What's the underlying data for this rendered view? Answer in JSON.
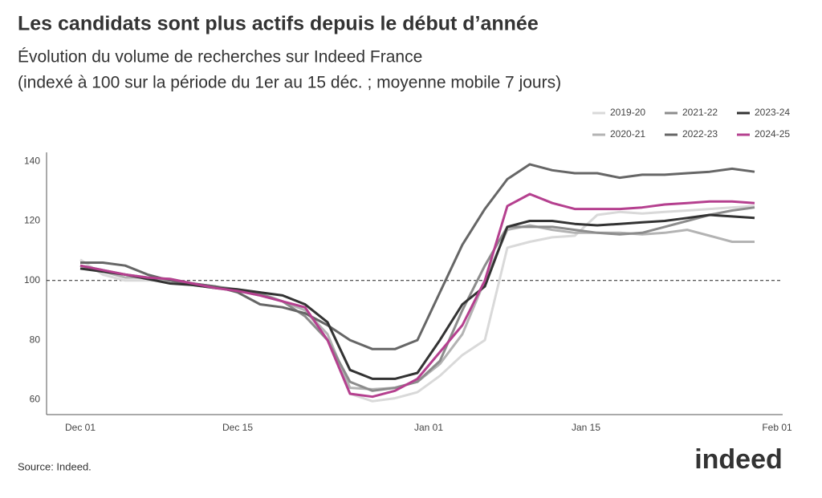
{
  "chart_data": {
    "type": "line",
    "title": "Les candidats sont plus actifs depuis le début d’année",
    "subtitle": [
      "Évolution du volume de recherches sur Indeed France",
      "(indexé à 100 sur la période du 1er au 15 déc. ; moyenne mobile 7 jours)"
    ],
    "source": "Source: Indeed.",
    "logo": "indeed",
    "x": [
      0,
      2,
      4,
      6,
      8,
      10,
      12,
      14,
      16,
      18,
      20,
      22,
      24,
      26,
      28,
      30,
      32,
      34,
      36,
      38,
      40,
      42,
      44,
      46,
      48,
      50,
      52,
      54,
      56,
      58,
      60
    ],
    "xlim": [
      -3,
      62.5
    ],
    "xticks": [
      {
        "value": 0,
        "label": "Dec 01"
      },
      {
        "value": 14,
        "label": "Dec 15"
      },
      {
        "value": 31,
        "label": "Jan 01"
      },
      {
        "value": 45,
        "label": "Jan 15"
      },
      {
        "value": 62,
        "label": "Feb 01"
      }
    ],
    "ylim": [
      55,
      143
    ],
    "yticks": [
      60,
      80,
      100,
      120,
      140
    ],
    "reference_line": 100,
    "legend": "top-right",
    "series": [
      {
        "name": "2019-20",
        "color": "#d9d9d9",
        "values": [
          107,
          102,
          100,
          100,
          100,
          98.5,
          97.5,
          97,
          96,
          93,
          90,
          80,
          62,
          59.5,
          60.5,
          62.5,
          68,
          75,
          80,
          111,
          113,
          114.5,
          115,
          122,
          123,
          122.5,
          123,
          123.5,
          124,
          124.5,
          125
        ]
      },
      {
        "name": "2020-21",
        "color": "#b3b3b3",
        "values": [
          105,
          103,
          101,
          101,
          100,
          98.5,
          97.5,
          96.5,
          95,
          93,
          90,
          82,
          64,
          63.5,
          64,
          66,
          72,
          82,
          100,
          117,
          118.5,
          117,
          116,
          116,
          116,
          115.5,
          116,
          117,
          115,
          113,
          113
        ]
      },
      {
        "name": "2021-22",
        "color": "#8c8c8c",
        "values": [
          105,
          103.5,
          102,
          101,
          100.5,
          99,
          98,
          97,
          95.5,
          93,
          88,
          80,
          66,
          63,
          64,
          66,
          73,
          90,
          105,
          118,
          118,
          118,
          117,
          116,
          115.5,
          116,
          118,
          120,
          122,
          123.5,
          124.5
        ]
      },
      {
        "name": "2022-23",
        "color": "#666666",
        "values": [
          106,
          106,
          105,
          102,
          100,
          99,
          98,
          96,
          92,
          91,
          89,
          85,
          80,
          77,
          77,
          80,
          96,
          112,
          124,
          134,
          139,
          137,
          136,
          136,
          134.5,
          135.5,
          135.5,
          136,
          136.5,
          137.5,
          136.5
        ]
      },
      {
        "name": "2023-24",
        "color": "#333333",
        "values": [
          104,
          103,
          102,
          100.5,
          99,
          98.5,
          97.5,
          97,
          96,
          95,
          92,
          86,
          70,
          67,
          67,
          69,
          80,
          92,
          98,
          118,
          120,
          120,
          119,
          118.5,
          119,
          119.5,
          120,
          121,
          122,
          121.5,
          121
        ]
      },
      {
        "name": "2024-25",
        "color": "#b5408f",
        "values": [
          105,
          103.5,
          102,
          101,
          100.5,
          99,
          97.5,
          96.5,
          95,
          93,
          91,
          80,
          62,
          61,
          63,
          67,
          76,
          85,
          100,
          125,
          129,
          126,
          124,
          124,
          124,
          124.5,
          125.5,
          126,
          126.5,
          126.5,
          126
        ]
      }
    ]
  }
}
